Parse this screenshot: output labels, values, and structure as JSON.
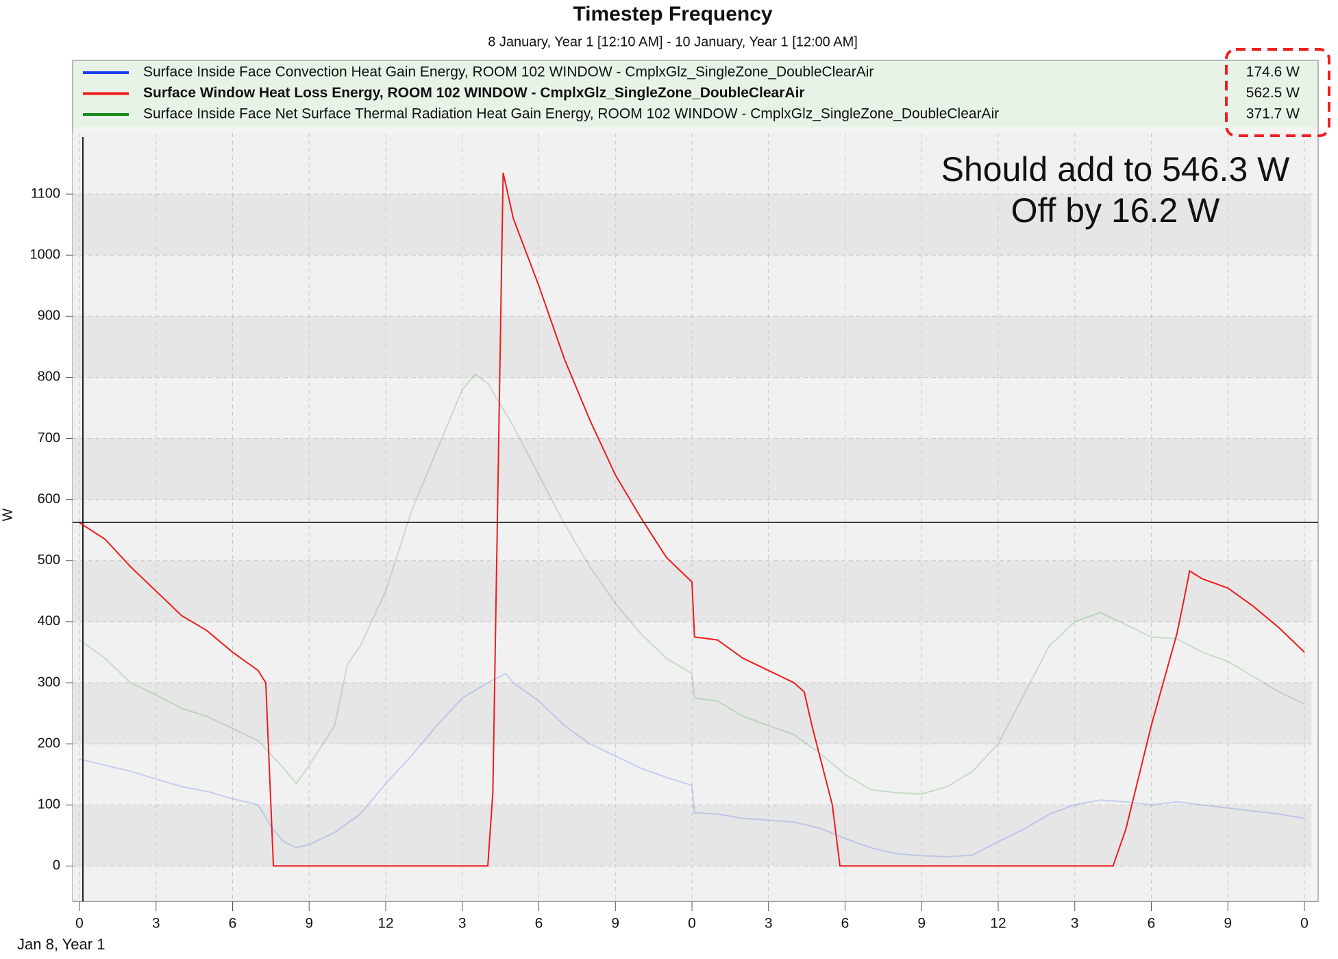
{
  "chart_data": {
    "type": "line",
    "title": "Timestep Frequency",
    "subtitle": "8 January, Year 1 [12:10 AM] - 10 January, Year 1 [12:00 AM]",
    "y_label": "W",
    "x_label": "Jan 8, Year 1",
    "annotations": [
      "Should add to 546.3 W",
      "Off by 16.2 W"
    ],
    "annotation_color": "#f04545",
    "cursor": 562.5,
    "xlim": [
      0,
      48
    ],
    "xticks": [
      {
        "value": 0,
        "label": "0"
      },
      {
        "value": 3,
        "label": "3"
      },
      {
        "value": 6,
        "label": "6"
      },
      {
        "value": 9,
        "label": "9"
      },
      {
        "value": 12,
        "label": "12"
      },
      {
        "value": 15,
        "label": "3"
      },
      {
        "value": 18,
        "label": "6"
      },
      {
        "value": 21,
        "label": "9"
      },
      {
        "value": 24,
        "label": "0"
      },
      {
        "value": 27,
        "label": "3"
      },
      {
        "value": 30,
        "label": "6"
      },
      {
        "value": 33,
        "label": "9"
      },
      {
        "value": 36,
        "label": "12"
      },
      {
        "value": 39,
        "label": "3"
      },
      {
        "value": 42,
        "label": "6"
      },
      {
        "value": 45,
        "label": "9"
      },
      {
        "value": 48,
        "label": "0"
      }
    ],
    "ylim": [
      -58,
      1200
    ],
    "yticks": [
      0,
      100,
      200,
      300,
      400,
      500,
      600,
      700,
      800,
      900,
      1000,
      1100
    ],
    "grid": true,
    "series": [
      {
        "name": "Surface Inside Face Convection Heat Gain Energy, ROOM 102 WINDOW - CmplxGlz_SingleZone_DoubleClearAir",
        "readout": "174.6 W",
        "color": "#1a3ff0",
        "line_opacity": 0.2,
        "x": [
          0,
          2,
          4,
          5,
          6,
          7,
          7.5,
          8,
          8.5,
          9,
          10,
          11,
          12,
          13,
          14,
          15,
          16,
          16.7,
          17,
          18,
          19,
          20,
          21,
          22,
          23,
          24,
          24.1,
          25,
          26,
          27,
          28,
          29,
          30,
          31,
          32,
          33,
          34,
          35,
          36,
          37,
          38,
          39,
          40,
          41,
          42,
          43,
          44,
          45,
          46,
          47,
          48
        ],
        "values": [
          175,
          155,
          130,
          122,
          110,
          100,
          65,
          40,
          30,
          35,
          55,
          85,
          135,
          180,
          230,
          275,
          300,
          315,
          300,
          270,
          230,
          200,
          180,
          160,
          145,
          132,
          87,
          85,
          78,
          75,
          72,
          62,
          45,
          30,
          20,
          17,
          15,
          18,
          40,
          60,
          85,
          100,
          108,
          105,
          100,
          105,
          100,
          95,
          90,
          85,
          78
        ]
      },
      {
        "name": "Surface Window Heat Loss Energy, ROOM 102 WINDOW - CmplxGlz_SingleZone_DoubleClearAir",
        "readout": "562.5 W",
        "color": "#f01a1a",
        "line_opacity": 1,
        "x": [
          0,
          1,
          2,
          3,
          4,
          5,
          6,
          7,
          7.3,
          7.6,
          16,
          16.2,
          16.6,
          17,
          18,
          19,
          20,
          21,
          22,
          23,
          24,
          24.1,
          25,
          26,
          27,
          28,
          28.4,
          28.7,
          29.5,
          29.8,
          40.5,
          41,
          42,
          43,
          43.3,
          43.5,
          44,
          45,
          46,
          47,
          48
        ],
        "values": [
          562,
          535,
          490,
          450,
          410,
          385,
          350,
          320,
          300,
          0,
          0,
          120,
          1135,
          1060,
          950,
          830,
          730,
          640,
          570,
          505,
          465,
          375,
          370,
          340,
          320,
          300,
          285,
          230,
          100,
          0,
          0,
          60,
          230,
          380,
          440,
          483,
          470,
          455,
          425,
          390,
          350
        ]
      },
      {
        "name": "Surface Inside Face Net Surface Thermal Radiation Heat Gain Energy, ROOM 102 WINDOW - CmplxGlz_SingleZone_DoubleClearAir",
        "readout": "371.7 W",
        "color": "#1a8a1a",
        "line_opacity": 0.2,
        "x": [
          0,
          1,
          2,
          3,
          4,
          5,
          6,
          7,
          8,
          8.5,
          9,
          10,
          10.5,
          11,
          12,
          13,
          14,
          15,
          15.5,
          16,
          17,
          18,
          19,
          20,
          21,
          22,
          23,
          24,
          24.1,
          25,
          26,
          27,
          28,
          29,
          30,
          31,
          32,
          33,
          34,
          35,
          36,
          37,
          38,
          39,
          40,
          41,
          42,
          43,
          44,
          45,
          46,
          47,
          48
        ],
        "values": [
          370,
          340,
          300,
          280,
          258,
          245,
          225,
          205,
          160,
          135,
          165,
          230,
          330,
          360,
          450,
          580,
          680,
          780,
          805,
          790,
          720,
          640,
          560,
          490,
          430,
          380,
          340,
          315,
          275,
          270,
          245,
          230,
          215,
          185,
          150,
          125,
          120,
          118,
          130,
          155,
          200,
          280,
          360,
          400,
          415,
          395,
          375,
          372,
          350,
          335,
          310,
          285,
          265
        ]
      }
    ]
  }
}
